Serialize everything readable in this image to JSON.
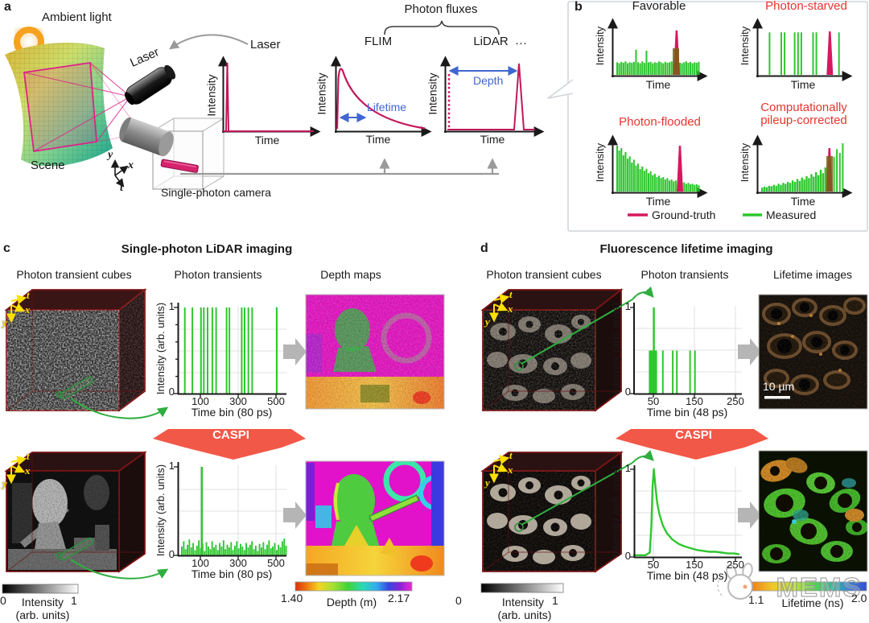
{
  "panel_a": {
    "label": "a",
    "ambient_light": "Ambient light",
    "laser_device": "Laser",
    "laser_callout": "Laser",
    "scene": "Scene",
    "camera": "Single-photon camera",
    "axis_y": "y",
    "axis_x": "x",
    "axis_t": "t",
    "pulse_plot": {
      "ylabel": "Intensity",
      "xlabel": "Time"
    },
    "photon_fluxes": "Photon fluxes",
    "flim": {
      "title": "FLIM",
      "ylabel": "Intensity",
      "xlabel": "Time",
      "annotation": "Lifetime"
    },
    "lidar": {
      "title": "LiDAR",
      "ylabel": "Intensity",
      "xlabel": "Time",
      "annotation": "Depth"
    },
    "more_dots": "···"
  },
  "panel_b": {
    "label": "b",
    "plots": [
      {
        "title": "Favorable",
        "ylabel": "Intensity",
        "xlabel": "Time"
      },
      {
        "title": "Photon-starved",
        "ylabel": "Intensity",
        "xlabel": "Time"
      },
      {
        "title": "Photon-flooded",
        "ylabel": "Intensity",
        "xlabel": "Time"
      },
      {
        "title_line1": "Computationally",
        "title_line2": "pileup-corrected",
        "ylabel": "Intensity",
        "xlabel": "Time"
      }
    ],
    "legend": {
      "ground_truth": "Ground-truth",
      "measured": "Measured"
    }
  },
  "panel_c": {
    "label": "c",
    "title": "Single-photon LiDAR imaging",
    "col_cubes": "Photon transient cubes",
    "col_transients": "Photon transients",
    "col_maps": "Depth maps",
    "caspi": "CASPI",
    "axis_t": "t",
    "axis_x": "x",
    "axis_y": "y",
    "plot": {
      "ylabel": "Intensity (arb. units)",
      "xlabel": "Time bin (80 ps)",
      "ytick0": "0",
      "ytick1": "1",
      "xticks": [
        "100",
        "300",
        "500"
      ]
    },
    "cbar_intensity": {
      "min": "0",
      "label": "Intensity",
      "label2": "(arb. units)",
      "max": "1"
    },
    "cbar_depth": {
      "min": "1.40",
      "label": "Depth (m)",
      "max": "2.17"
    }
  },
  "panel_d": {
    "label": "d",
    "title": "Fluorescence lifetime imaging",
    "col_cubes": "Photon transient cubes",
    "col_transients": "Photon transients",
    "col_maps": "Lifetime images",
    "caspi": "CASPI",
    "axis_t": "t",
    "axis_x": "x",
    "axis_y": "y",
    "plot": {
      "ylabel": "Intensity (arb. units)",
      "xlabel": "Time bin (48 ps)",
      "ytick0": "0",
      "ytick1": "1",
      "xticks": [
        "50",
        "150",
        "250"
      ]
    },
    "scalebar": "10 µm",
    "cbar_intensity": {
      "min": "0",
      "label": "Intensity",
      "label2": "(arb. units)",
      "max": "1"
    },
    "cbar_lifetime": {
      "min": "1.1",
      "label": "Lifetime (ns)",
      "max": "2.0"
    }
  },
  "watermark": {
    "text": "MEMS"
  },
  "colors": {
    "ground_truth": "#d6185e",
    "measured": "#2ec72e",
    "annotation_blue": "#4166d0",
    "caspi_arrow": "#f25848",
    "cube_wireframe": "#7d1414",
    "cube_axes": "#ffe000",
    "red_title": "#e8342e"
  },
  "chart_data": [
    {
      "id": "a-pulse",
      "type": "line",
      "xlabel": "Time",
      "ylabel": "Intensity",
      "description": "Narrow laser emission pulse at start of time axis"
    },
    {
      "id": "a-flim",
      "type": "line",
      "xlabel": "Time",
      "ylabel": "Intensity",
      "annotation": "Lifetime",
      "description": "Exponentially decaying photon flux (FLIM)"
    },
    {
      "id": "a-lidar",
      "type": "line",
      "xlabel": "Time",
      "ylabel": "Intensity",
      "annotation": "Depth",
      "description": "Dotted emission marker at t=0 and narrow return peak late in time (LiDAR)"
    },
    {
      "id": "b-favorable",
      "type": "bar",
      "title": "Favorable",
      "xlabel": "Time",
      "ylabel": "Intensity",
      "xlim": [
        0,
        1
      ],
      "ylim": [
        0,
        1
      ],
      "bars": [
        0.26,
        0.24,
        0.27,
        0.25,
        0.28,
        0.24,
        0.26,
        0.25,
        0.27,
        0.52,
        0.26,
        0.24,
        0.28,
        0.25,
        0.5,
        0.26,
        0.27,
        0.24,
        0.26,
        0.25,
        0.28,
        0.26,
        0.24,
        0.27,
        0.25,
        0.26,
        0.28,
        0.24,
        0.26,
        0.27,
        0.25,
        0.24,
        0.26,
        0.28,
        0.25,
        0.27,
        0.24,
        0.26,
        0.25,
        0.27
      ],
      "gt": [
        0.72,
        0.92
      ]
    },
    {
      "id": "b-starved",
      "type": "bar",
      "title": "Photon-starved",
      "xlabel": "Time",
      "ylabel": "Intensity",
      "xlim": [
        0,
        1
      ],
      "ylim": [
        0,
        1
      ],
      "spikes": [
        [
          0.1,
          0.88,
          2
        ],
        [
          0.24,
          0.88,
          2
        ],
        [
          0.28,
          0.88,
          2
        ],
        [
          0.4,
          0.88,
          2
        ],
        [
          0.44,
          0.88,
          2
        ],
        [
          0.48,
          0.88,
          2
        ],
        [
          0.62,
          0.88,
          2
        ],
        [
          0.66,
          0.88,
          2
        ],
        [
          0.93,
          0.88,
          2
        ]
      ],
      "gt": [
        0.82,
        0.9
      ]
    },
    {
      "id": "b-flooded",
      "type": "bar",
      "title": "Photon-flooded",
      "xlabel": "Time",
      "ylabel": "Intensity",
      "xlim": [
        0,
        1
      ],
      "ylim": [
        0,
        1
      ],
      "bars": [
        0.95,
        0.85,
        0.9,
        0.75,
        0.82,
        0.68,
        0.73,
        0.6,
        0.66,
        0.54,
        0.58,
        0.47,
        0.52,
        0.43,
        0.47,
        0.38,
        0.42,
        0.34,
        0.37,
        0.3,
        0.33,
        0.28,
        0.3,
        0.25,
        0.28,
        0.23,
        0.25,
        0.21,
        0.23,
        0.19,
        0.21,
        0.18,
        0.19,
        0.16,
        0.18,
        0.15,
        0.16,
        0.14,
        0.15,
        0.13
      ],
      "gt": [
        0.76,
        0.95
      ]
    },
    {
      "id": "b-pileup",
      "type": "bar",
      "title": "Computationally pileup-corrected",
      "xlabel": "Time",
      "ylabel": "Intensity",
      "xlim": [
        0,
        1
      ],
      "ylim": [
        0,
        1
      ],
      "bars_span": [
        0,
        0.84
      ],
      "bars": [
        0.08,
        0.1,
        0.09,
        0.12,
        0.11,
        0.14,
        0.12,
        0.16,
        0.14,
        0.18,
        0.16,
        0.2,
        0.18,
        0.23,
        0.2,
        0.26,
        0.22,
        0.29,
        0.25,
        0.32,
        0.28,
        0.36,
        0.31,
        0.4,
        0.34,
        0.45,
        0.38,
        0.5,
        0.43,
        0.56
      ],
      "spikes": [
        [
          0.87,
          0.72,
          2
        ],
        [
          0.905,
          0.88,
          2
        ],
        [
          0.94,
          0.8,
          2
        ],
        [
          0.975,
          1.0,
          2
        ]
      ],
      "gt": [
        0.815,
        0.9
      ]
    },
    {
      "id": "c-transients-raw",
      "type": "bar",
      "title": "Photon transients (raw single-photon LiDAR)",
      "xlabel": "Time bin (80 ps)",
      "ylabel": "Intensity (arb. units)",
      "xlim": [
        0,
        560
      ],
      "ylim": [
        0,
        1
      ],
      "xticks": [
        100,
        300,
        500
      ],
      "yticks": [
        0,
        1
      ],
      "spikes": [
        [
          20,
          1,
          2
        ],
        [
          60,
          1,
          2
        ],
        [
          105,
          1,
          2
        ],
        [
          120,
          1,
          2
        ],
        [
          140,
          1,
          2
        ],
        [
          165,
          1,
          2
        ],
        [
          185,
          1,
          2
        ],
        [
          240,
          1,
          2
        ],
        [
          255,
          1,
          2
        ],
        [
          320,
          1,
          2
        ],
        [
          335,
          1,
          2
        ],
        [
          355,
          1,
          2
        ],
        [
          375,
          1,
          2
        ],
        [
          505,
          1,
          2
        ]
      ]
    },
    {
      "id": "c-transients-caspi",
      "type": "bar",
      "title": "Photon transients (after CASPI)",
      "xlabel": "Time bin (80 ps)",
      "ylabel": "Intensity (arb. units)",
      "xlim": [
        0,
        560
      ],
      "ylim": [
        0,
        1
      ],
      "xticks": [
        100,
        300,
        500
      ],
      "yticks": [
        0,
        1
      ],
      "bars": [
        0.1,
        0.16,
        0.07,
        0.12,
        0.18,
        0.09,
        0.14,
        0.06,
        0.11,
        0.17,
        0.08,
        0.13,
        0.05,
        0.15,
        0.1,
        0.07,
        0.16,
        0.09,
        0.12,
        0.06,
        0.14,
        0.1,
        0.17,
        0.07,
        0.12,
        0.09,
        0.15,
        0.06,
        0.11,
        0.16,
        0.08,
        0.13,
        0.1,
        0.06,
        0.14,
        0.09,
        0.12,
        0.16,
        0.07,
        0.11,
        0.05,
        0.13,
        0.09,
        0.15,
        0.07,
        0.12,
        0.17,
        0.08,
        0.1,
        0.14,
        0.06,
        0.12,
        0.09,
        0.16,
        0.19,
        0.11
      ],
      "spikes": [
        [
          110,
          1,
          2.5
        ]
      ]
    },
    {
      "id": "d-transients-raw",
      "type": "bar",
      "title": "Photon transients (raw FLIM)",
      "xlabel": "Time bin (48 ps)",
      "ylabel": "Intensity (arb. units)",
      "xlim": [
        0,
        260
      ],
      "ylim": [
        0,
        1
      ],
      "xticks": [
        50,
        150,
        250
      ],
      "yticks": [
        0,
        1
      ],
      "blocks": [
        [
          38,
          58,
          0.5
        ]
      ],
      "spikes": [
        [
          50,
          1,
          2.5
        ],
        [
          72,
          0.5,
          2
        ],
        [
          96,
          0.5,
          2
        ],
        [
          106,
          0.5,
          2
        ],
        [
          138,
          0.5,
          2
        ],
        [
          150,
          0.5,
          2
        ]
      ]
    },
    {
      "id": "d-transients-caspi",
      "type": "line",
      "title": "Photon transients (after CASPI)",
      "xlabel": "Time bin (48 ps)",
      "ylabel": "Intensity (arb. units)",
      "xlim": [
        0,
        260
      ],
      "ylim": [
        0,
        1
      ],
      "xticks": [
        50,
        150,
        250
      ],
      "yticks": [
        0,
        1
      ],
      "curve": {
        "x": [
          0,
          30,
          40,
          44,
          47,
          50,
          54,
          58,
          64,
          72,
          82,
          95,
          110,
          125,
          140,
          155,
          170,
          185,
          200,
          215,
          230,
          245,
          258
        ],
        "y": [
          0.02,
          0.02,
          0.05,
          0.35,
          0.8,
          1.0,
          0.8,
          0.62,
          0.48,
          0.36,
          0.27,
          0.2,
          0.15,
          0.12,
          0.1,
          0.08,
          0.07,
          0.06,
          0.06,
          0.05,
          0.04,
          0.04,
          0.03
        ]
      }
    },
    {
      "id": "c-depth-colorbar",
      "type": "heatmap",
      "title": "Depth (m)",
      "range": [
        1.4,
        2.17
      ]
    },
    {
      "id": "d-lifetime-colorbar",
      "type": "heatmap",
      "title": "Lifetime (ns)",
      "range": [
        1.1,
        2.0
      ]
    },
    {
      "id": "intensity-colorbars",
      "type": "heatmap",
      "title": "Intensity (arb. units)",
      "range": [
        0,
        1
      ]
    }
  ]
}
